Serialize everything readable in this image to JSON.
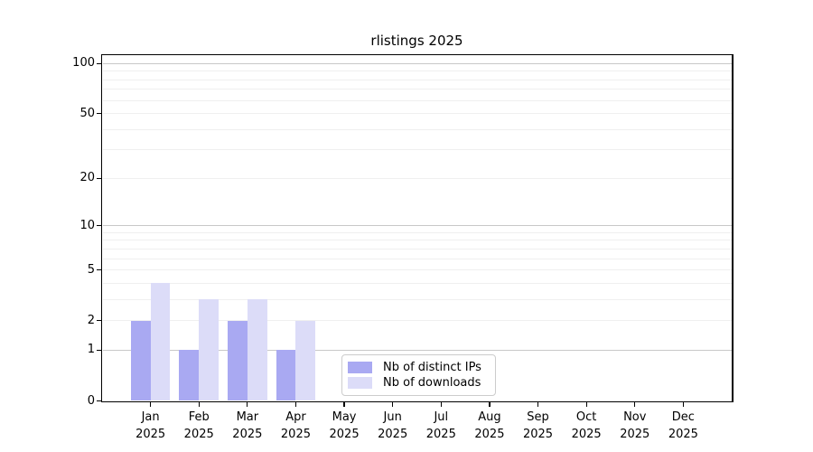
{
  "chart_data": {
    "type": "bar",
    "title": "rlistings 2025",
    "x": {
      "months": [
        "Jan",
        "Feb",
        "Mar",
        "Apr",
        "May",
        "Jun",
        "Jul",
        "Aug",
        "Sep",
        "Oct",
        "Nov",
        "Dec"
      ],
      "year": "2025"
    },
    "y_axis": {
      "scale": "log1p",
      "tick_values": [
        100,
        50,
        20,
        10,
        5,
        2,
        1,
        0
      ],
      "major_gridlines": [
        1,
        10,
        100
      ],
      "minor_gridlines": [
        2,
        3,
        4,
        5,
        6,
        7,
        8,
        9,
        20,
        30,
        40,
        50,
        60,
        70,
        80,
        90
      ],
      "ylim": [
        0,
        112
      ]
    },
    "series": [
      {
        "name": "Nb of distinct IPs",
        "color": "#a9a9f2",
        "values": [
          2,
          1,
          2,
          1,
          0,
          0,
          0,
          0,
          0,
          0,
          0,
          0
        ]
      },
      {
        "name": "Nb of downloads",
        "color": "#dcdcf8",
        "values": [
          4,
          3,
          3,
          2,
          0,
          0,
          0,
          0,
          0,
          0,
          0,
          0
        ]
      }
    ],
    "legend_position": "inside lower center",
    "grid": "on"
  },
  "colors": {
    "minor_gridline": "#efefef",
    "major_gridline": "#c8c8c8",
    "spine": "#000000",
    "legend_border": "#cccccc",
    "text": "#000000"
  }
}
